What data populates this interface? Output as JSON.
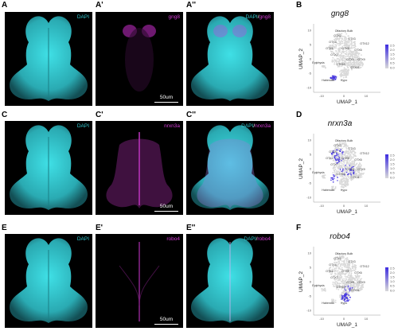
{
  "colors": {
    "dapi": "#31c8cf",
    "marker": "#d43bd6",
    "umap_low": "#d9d9d9",
    "umap_high": "#3d2ce0"
  },
  "rows": [
    {
      "letters": [
        "A",
        "A'",
        "A''",
        "B"
      ],
      "dapi_label": "DAPI",
      "gene_label": "gng8",
      "merge_a": "DAPI",
      "merge_b": "gng8",
      "scale": "50um",
      "gene_title": "gng8",
      "legend_ticks": [
        "2.5",
        "2.0",
        "1.5",
        "1.0",
        "0.5",
        "0.0"
      ]
    },
    {
      "letters": [
        "C",
        "C'",
        "C''",
        "D"
      ],
      "dapi_label": "DAPI",
      "gene_label": "nrxn3a",
      "merge_a": "DAPI",
      "merge_b": "nrxn3a",
      "scale": "50um",
      "gene_title": "nrxn3a",
      "legend_ticks": [
        "2.5",
        "2.0",
        "1.5",
        "1.0",
        "0.5",
        "0.0"
      ]
    },
    {
      "letters": [
        "E",
        "E'",
        "E''",
        "F"
      ],
      "dapi_label": "DAPI",
      "gene_label": "robo4",
      "merge_a": "DAPI",
      "merge_b": "robo4",
      "scale": "50um",
      "gene_title": "robo4",
      "legend_ticks": [
        "2.5",
        "2.0",
        "1.5",
        "1.0",
        "0.5",
        "0.0"
      ]
    }
  ],
  "umap": {
    "xlabel": "UMAP_1",
    "ylabel": "UMAP_2",
    "x_ticks": [
      "-10",
      "0",
      "10"
    ],
    "y_ticks": [
      "10",
      "5",
      "0",
      "-5",
      "-10"
    ],
    "cluster_labels": [
      "Olfactory Bulb",
      "OTX2",
      "OTX3",
      "OTX4",
      "OTX5",
      "OTX6",
      "OTX7",
      "OTX8",
      "OTX9",
      "OTX10",
      "OTX11",
      "Epiphysis",
      "Habenula",
      "Hypo",
      "OTX1",
      "OTX12"
    ]
  }
}
